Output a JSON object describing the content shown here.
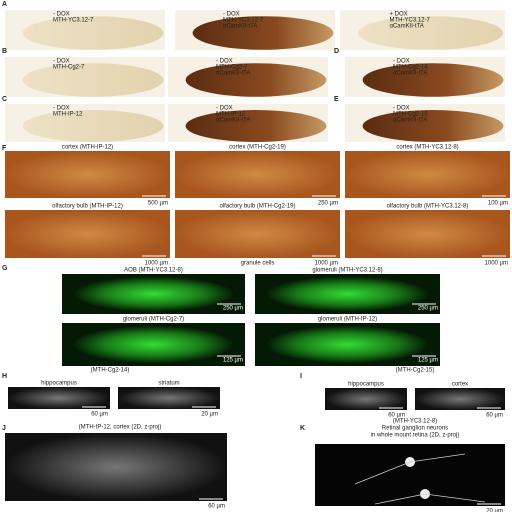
{
  "panels": [
    {
      "letter": "A",
      "images": [
        {
          "lines": [
            "- DOX",
            "MTH-YC3.12-7"
          ]
        },
        {
          "lines": [
            "- DOX",
            "MTH-YC3.12-7",
            "αCamKII-tTA"
          ]
        },
        {
          "lines": [
            "+ DOX",
            "MTH-YC3.12-7",
            "αCamKII-tTA"
          ]
        }
      ]
    },
    {
      "letter": "B",
      "images": [
        {
          "lines": [
            "- DOX",
            "MTH-Cg2-7"
          ]
        },
        {
          "lines": [
            "- DOX",
            "MTH-Cg2-7",
            "αCamKII-tTA"
          ]
        }
      ]
    },
    {
      "letter": "D",
      "images": [
        {
          "lines": [
            "- DOX",
            "MTH-Cg2-14",
            "αCamKII-tTA"
          ]
        }
      ]
    },
    {
      "letter": "C",
      "images": [
        {
          "lines": [
            "- DOX",
            "MTH-IP-12"
          ]
        },
        {
          "lines": [
            "- DOX",
            "MTH-IP-12",
            "αCamKII-tTA"
          ]
        }
      ]
    },
    {
      "letter": "E",
      "images": [
        {
          "lines": [
            "- DOX",
            "MTH-Cg2-15",
            "αCamKII-tTA"
          ]
        }
      ]
    },
    {
      "letter": "F",
      "images": [
        {
          "lines": [
            "cortex (MTH-IP-12)"
          ],
          "scale": "500 µm"
        },
        {
          "lines": [
            "cortex (MTH-Cg2-19)"
          ],
          "scale": "250 µm"
        },
        {
          "lines": [
            "cortex (MTH-YC3.12-8)"
          ],
          "scale": "100 µm"
        },
        {
          "lines": [
            "olfactory bulb (MTH-IP-12)"
          ],
          "scale": "1000 µm"
        },
        {
          "lines": [
            "olfactory bulb (MTH-Cg2-19)"
          ],
          "note": "granule cells",
          "scale": "1000 µm"
        },
        {
          "lines": [
            "olfactory bulb (MTH-YC3.12-8)"
          ],
          "scale": "1000 µm"
        }
      ]
    },
    {
      "letter": "G",
      "images": [
        {
          "lines": [
            "AOB (MTH-YC3.12-8)"
          ],
          "scale": "250 µm"
        },
        {
          "lines": [
            "glomeruli (MTH-YC3.12-8)"
          ],
          "scale": "250 µm"
        },
        {
          "lines": [
            "glomeruli (MTH-Cg2-7)"
          ],
          "scale": "125 µm"
        },
        {
          "lines": [
            "glomeruli (MTH-IP-12)"
          ],
          "scale": "125 µm"
        }
      ]
    },
    {
      "letter": "H",
      "heading": [
        "(MTH-Cg2-14)"
      ],
      "images": [
        {
          "lines": [
            "hippocampus"
          ],
          "scale": "60 µm"
        },
        {
          "lines": [
            "striatum"
          ],
          "scale": "20 µm"
        }
      ]
    },
    {
      "letter": "I",
      "heading": [
        "(MTH-Cg2-15)"
      ],
      "images": [
        {
          "lines": [
            "hippocampus"
          ],
          "scale": "60 µm"
        },
        {
          "lines": [
            "cortex"
          ],
          "scale": "60 µm"
        }
      ]
    },
    {
      "letter": "J",
      "heading": [
        "(MTH-IP-12, cortex (2D, z-proj)"
      ],
      "images": [
        {
          "lines": [],
          "scale": "60 µm"
        }
      ]
    },
    {
      "letter": "K",
      "heading": [
        "(MTH-YC3.12-8)",
        "Retinal ganglion neurons",
        "in whole mount retina (2D, z-proj)"
      ],
      "images": [
        {
          "lines": [],
          "scale": "20 µm"
        }
      ]
    }
  ]
}
